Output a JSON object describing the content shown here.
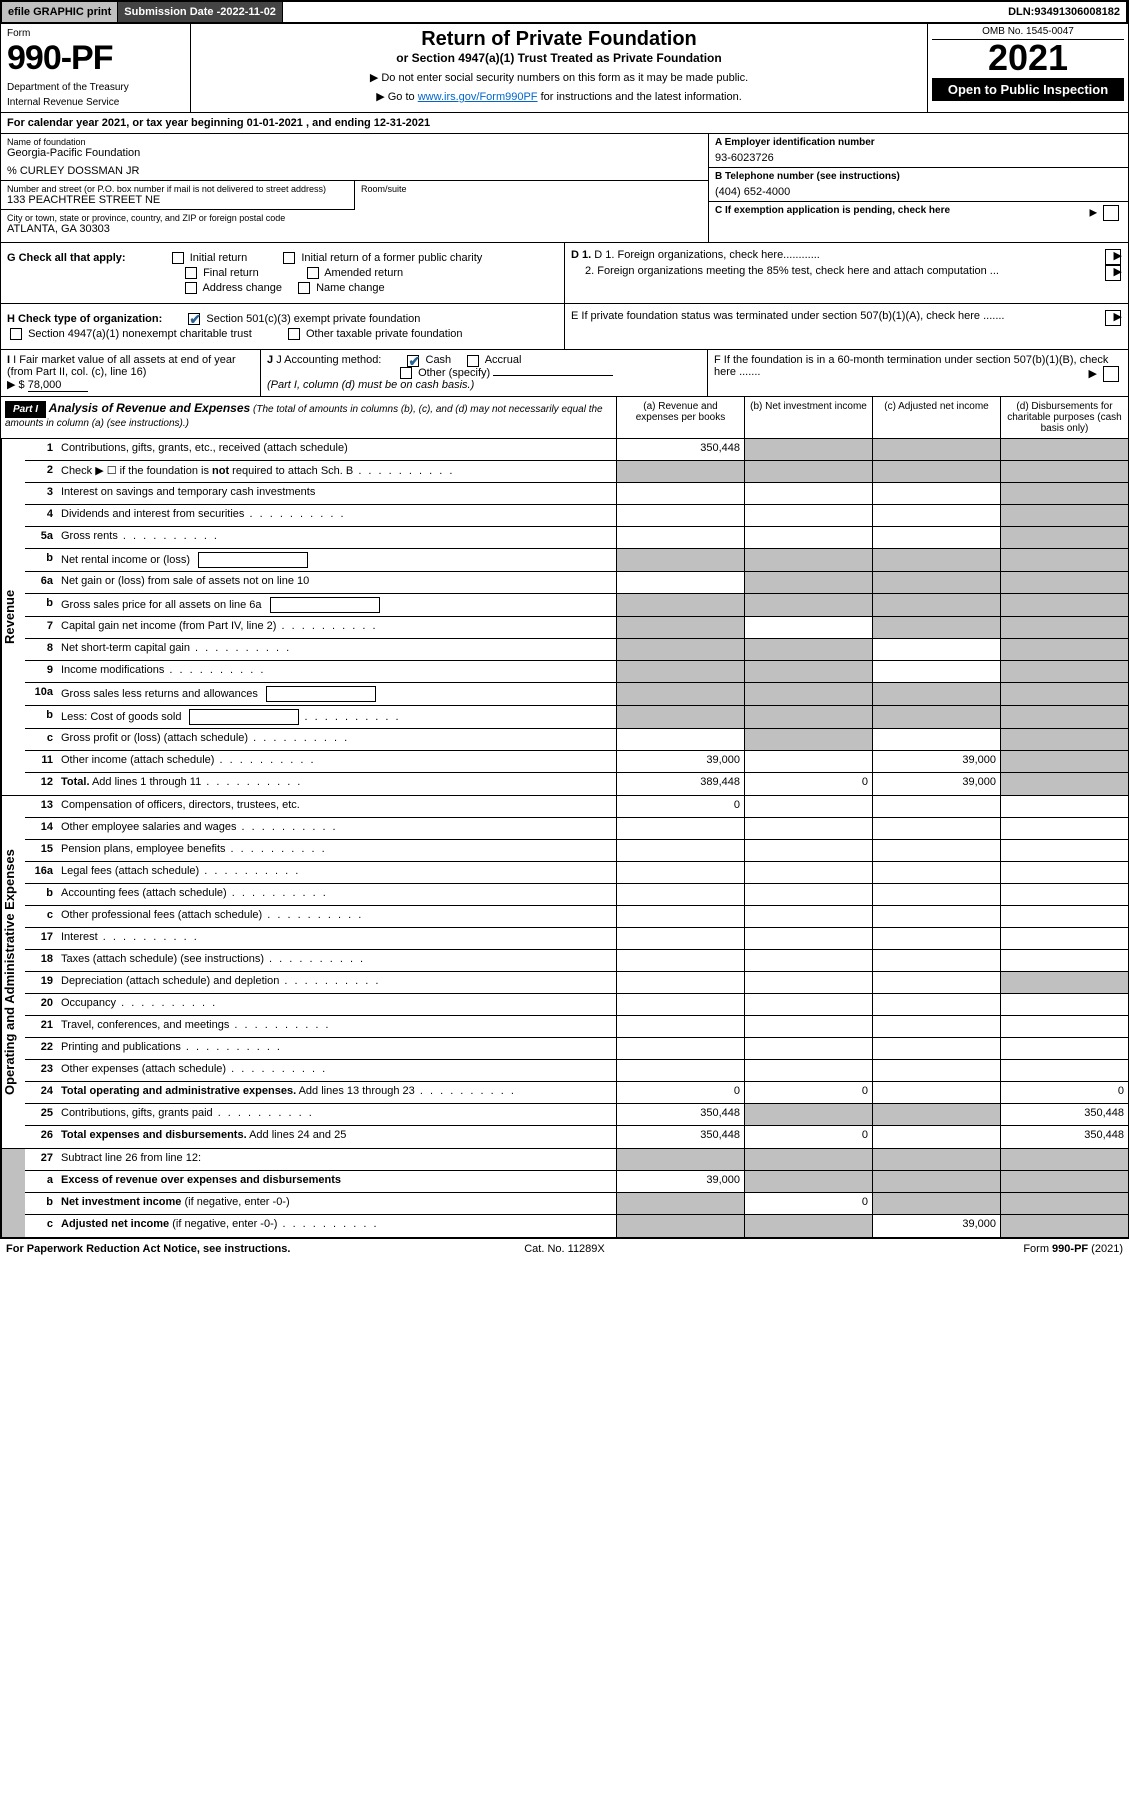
{
  "topbar": {
    "efile": "efile GRAPHIC print",
    "subdate_label": "Submission Date - ",
    "subdate": "2022-11-02",
    "dln_label": "DLN: ",
    "dln": "93491306008182"
  },
  "header": {
    "form_label": "Form",
    "form_num": "990-PF",
    "dept": "Department of the Treasury",
    "irs": "Internal Revenue Service",
    "title": "Return of Private Foundation",
    "subtitle": "or Section 4947(a)(1) Trust Treated as Private Foundation",
    "instr1": "▶ Do not enter social security numbers on this form as it may be made public.",
    "instr2_prefix": "▶ Go to ",
    "instr2_link": "www.irs.gov/Form990PF",
    "instr2_suffix": " for instructions and the latest information.",
    "omb": "OMB No. 1545-0047",
    "year": "2021",
    "open": "Open to Public Inspection"
  },
  "calyear": "For calendar year 2021, or tax year beginning 01-01-2021               , and ending 12-31-2021",
  "entity": {
    "name_label": "Name of foundation",
    "name": "Georgia-Pacific Foundation",
    "care_of": "% CURLEY DOSSMAN JR",
    "addr_label": "Number and street (or P.O. box number if mail is not delivered to street address)",
    "addr": "133 PEACHTREE STREET NE",
    "room_label": "Room/suite",
    "city_label": "City or town, state or province, country, and ZIP or foreign postal code",
    "city": "ATLANTA, GA  30303",
    "a_label": "A Employer identification number",
    "a_val": "93-6023726",
    "b_label": "B Telephone number (see instructions)",
    "b_val": "(404) 652-4000",
    "c_label": "C If exemption application is pending, check here",
    "d1": "D 1. Foreign organizations, check here............",
    "d2": "2. Foreign organizations meeting the 85% test, check here and attach computation ...",
    "e": "E  If private foundation status was terminated under section 507(b)(1)(A), check here .......",
    "f": "F  If the foundation is in a 60-month termination under section 507(b)(1)(B), check here ......."
  },
  "g": {
    "label": "G Check all that apply:",
    "opts": [
      "Initial return",
      "Initial return of a former public charity",
      "Final return",
      "Amended return",
      "Address change",
      "Name change"
    ]
  },
  "h": {
    "label": "H Check type of organization:",
    "o1": "Section 501(c)(3) exempt private foundation",
    "o2": "Section 4947(a)(1) nonexempt charitable trust",
    "o3": "Other taxable private foundation"
  },
  "i": {
    "label": "I Fair market value of all assets at end of year (from Part II, col. (c), line 16)",
    "prefix": "▶ $",
    "val": "78,000"
  },
  "j": {
    "label": "J Accounting method:",
    "cash": "Cash",
    "accrual": "Accrual",
    "other": "Other (specify)",
    "note": "(Part I, column (d) must be on cash basis.)"
  },
  "part1": {
    "tag": "Part I",
    "title": "Analysis of Revenue and Expenses",
    "note": " (The total of amounts in columns (b), (c), and (d) may not necessarily equal the amounts in column (a) (see instructions).)",
    "cols": {
      "a": "(a)   Revenue and expenses per books",
      "b": "(b)   Net investment income",
      "c": "(c)   Adjusted net income",
      "d": "(d)   Disbursements for charitable purposes (cash basis only)"
    }
  },
  "sections": {
    "revenue": "Revenue",
    "expenses": "Operating and Administrative Expenses"
  },
  "rows": [
    {
      "n": "1",
      "l": "Contributions, gifts, grants, etc., received (attach schedule)",
      "a": "350,448",
      "b": "sh",
      "c": "sh",
      "d": "sh"
    },
    {
      "n": "2",
      "l": "Check ▶ ☐ if the foundation is <b>not</b> required to attach Sch. B",
      "dots": true,
      "a": "sh",
      "b": "sh",
      "c": "sh",
      "d": "sh"
    },
    {
      "n": "3",
      "l": "Interest on savings and temporary cash investments",
      "a": "",
      "b": "",
      "c": "",
      "d": "sh"
    },
    {
      "n": "4",
      "l": "Dividends and interest from securities",
      "dots": true,
      "a": "",
      "b": "",
      "c": "",
      "d": "sh"
    },
    {
      "n": "5a",
      "l": "Gross rents",
      "dots": true,
      "a": "",
      "b": "",
      "c": "",
      "d": "sh"
    },
    {
      "n": "b",
      "l": "Net rental income or (loss)",
      "mini": true,
      "a": "sh",
      "b": "sh",
      "c": "sh",
      "d": "sh"
    },
    {
      "n": "6a",
      "l": "Net gain or (loss) from sale of assets not on line 10",
      "a": "",
      "b": "sh",
      "c": "sh",
      "d": "sh"
    },
    {
      "n": "b",
      "l": "Gross sales price for all assets on line 6a",
      "mini": true,
      "a": "sh",
      "b": "sh",
      "c": "sh",
      "d": "sh"
    },
    {
      "n": "7",
      "l": "Capital gain net income (from Part IV, line 2)",
      "dots": true,
      "a": "sh",
      "b": "",
      "c": "sh",
      "d": "sh"
    },
    {
      "n": "8",
      "l": "Net short-term capital gain",
      "dots": true,
      "a": "sh",
      "b": "sh",
      "c": "",
      "d": "sh"
    },
    {
      "n": "9",
      "l": "Income modifications",
      "dots": true,
      "a": "sh",
      "b": "sh",
      "c": "",
      "d": "sh"
    },
    {
      "n": "10a",
      "l": "Gross sales less returns and allowances",
      "mini": true,
      "a": "sh",
      "b": "sh",
      "c": "sh",
      "d": "sh"
    },
    {
      "n": "b",
      "l": "Less: Cost of goods sold",
      "dots": true,
      "mini": true,
      "a": "sh",
      "b": "sh",
      "c": "sh",
      "d": "sh"
    },
    {
      "n": "c",
      "l": "Gross profit or (loss) (attach schedule)",
      "dots": true,
      "a": "",
      "b": "sh",
      "c": "",
      "d": "sh"
    },
    {
      "n": "11",
      "l": "Other income (attach schedule)",
      "dots": true,
      "a": "39,000",
      "b": "",
      "c": "39,000",
      "d": "sh"
    },
    {
      "n": "12",
      "l": "<b>Total.</b> Add lines 1 through 11",
      "dots": true,
      "a": "389,448",
      "b": "0",
      "c": "39,000",
      "d": "sh"
    }
  ],
  "exp_rows": [
    {
      "n": "13",
      "l": "Compensation of officers, directors, trustees, etc.",
      "a": "0",
      "b": "",
      "c": "",
      "d": ""
    },
    {
      "n": "14",
      "l": "Other employee salaries and wages",
      "dots": true,
      "a": "",
      "b": "",
      "c": "",
      "d": ""
    },
    {
      "n": "15",
      "l": "Pension plans, employee benefits",
      "dots": true,
      "a": "",
      "b": "",
      "c": "",
      "d": ""
    },
    {
      "n": "16a",
      "l": "Legal fees (attach schedule)",
      "dots": true,
      "a": "",
      "b": "",
      "c": "",
      "d": ""
    },
    {
      "n": "b",
      "l": "Accounting fees (attach schedule)",
      "dots": true,
      "a": "",
      "b": "",
      "c": "",
      "d": ""
    },
    {
      "n": "c",
      "l": "Other professional fees (attach schedule)",
      "dots": true,
      "a": "",
      "b": "",
      "c": "",
      "d": ""
    },
    {
      "n": "17",
      "l": "Interest",
      "dots": true,
      "a": "",
      "b": "",
      "c": "",
      "d": ""
    },
    {
      "n": "18",
      "l": "Taxes (attach schedule) (see instructions)",
      "dots": true,
      "a": "",
      "b": "",
      "c": "",
      "d": ""
    },
    {
      "n": "19",
      "l": "Depreciation (attach schedule) and depletion",
      "dots": true,
      "a": "",
      "b": "",
      "c": "",
      "d": "sh"
    },
    {
      "n": "20",
      "l": "Occupancy",
      "dots": true,
      "a": "",
      "b": "",
      "c": "",
      "d": ""
    },
    {
      "n": "21",
      "l": "Travel, conferences, and meetings",
      "dots": true,
      "a": "",
      "b": "",
      "c": "",
      "d": ""
    },
    {
      "n": "22",
      "l": "Printing and publications",
      "dots": true,
      "a": "",
      "b": "",
      "c": "",
      "d": ""
    },
    {
      "n": "23",
      "l": "Other expenses (attach schedule)",
      "dots": true,
      "a": "",
      "b": "",
      "c": "",
      "d": ""
    },
    {
      "n": "24",
      "l": "<b>Total operating and administrative expenses.</b> Add lines 13 through 23",
      "dots": true,
      "a": "0",
      "b": "0",
      "c": "",
      "d": "0"
    },
    {
      "n": "25",
      "l": "Contributions, gifts, grants paid",
      "dots": true,
      "a": "350,448",
      "b": "sh",
      "c": "sh",
      "d": "350,448"
    },
    {
      "n": "26",
      "l": "<b>Total expenses and disbursements.</b> Add lines 24 and 25",
      "a": "350,448",
      "b": "0",
      "c": "",
      "d": "350,448"
    }
  ],
  "tail_rows": [
    {
      "n": "27",
      "l": "Subtract line 26 from line 12:",
      "a": "sh",
      "b": "sh",
      "c": "sh",
      "d": "sh"
    },
    {
      "n": "a",
      "l": "<b>Excess of revenue over expenses and disbursements</b>",
      "a": "39,000",
      "b": "sh",
      "c": "sh",
      "d": "sh"
    },
    {
      "n": "b",
      "l": "<b>Net investment income</b> (if negative, enter -0-)",
      "a": "sh",
      "b": "0",
      "c": "sh",
      "d": "sh"
    },
    {
      "n": "c",
      "l": "<b>Adjusted net income</b> (if negative, enter -0-)",
      "dots": true,
      "a": "sh",
      "b": "sh",
      "c": "39,000",
      "d": "sh"
    }
  ],
  "footer": {
    "left": "For Paperwork Reduction Act Notice, see instructions.",
    "mid": "Cat. No. 11289X",
    "right": "Form 990-PF (2021)"
  }
}
